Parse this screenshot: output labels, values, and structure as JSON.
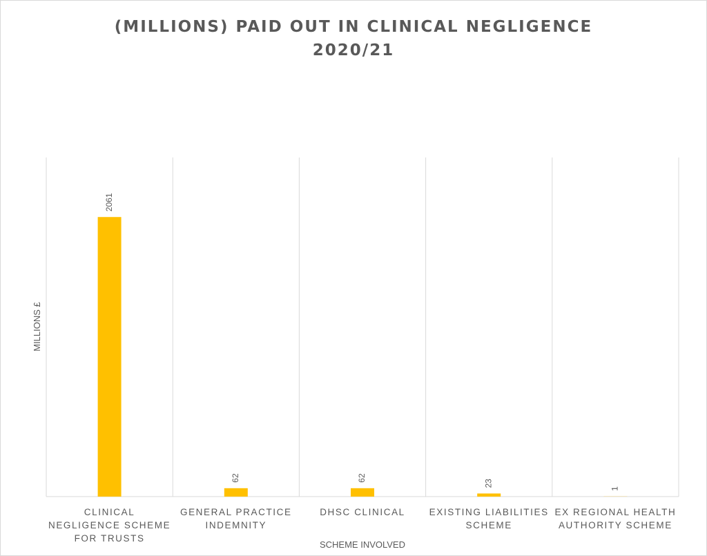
{
  "chart_data": {
    "type": "bar",
    "title_lines": [
      "(MILLIONS) PAID OUT IN CLINICAL NEGLIGENCE",
      "2020/21"
    ],
    "xlabel": "SCHEME INVOLVED",
    "ylabel": "MILLIONS £",
    "categories": [
      [
        "CLINICAL",
        "NEGLIGENCE SCHEME",
        "FOR TRUSTS"
      ],
      [
        "GENERAL PRACTICE",
        "INDEMNITY"
      ],
      [
        "DHSC CLINICAL"
      ],
      [
        "EXISTING LIABILITIES",
        "SCHEME"
      ],
      [
        "EX REGIONAL HEALTH",
        "AUTHORITY SCHEME"
      ]
    ],
    "values": [
      2061,
      62,
      62,
      23,
      1
    ],
    "data_labels": [
      "2061",
      "62",
      "62",
      "23",
      "1"
    ],
    "ylim": [
      0,
      2500
    ],
    "grid": "vertical category separators",
    "legend": "none",
    "colors": {
      "bar": "#ffc000",
      "text": "#595959",
      "grid": "#d9d9d9"
    }
  }
}
